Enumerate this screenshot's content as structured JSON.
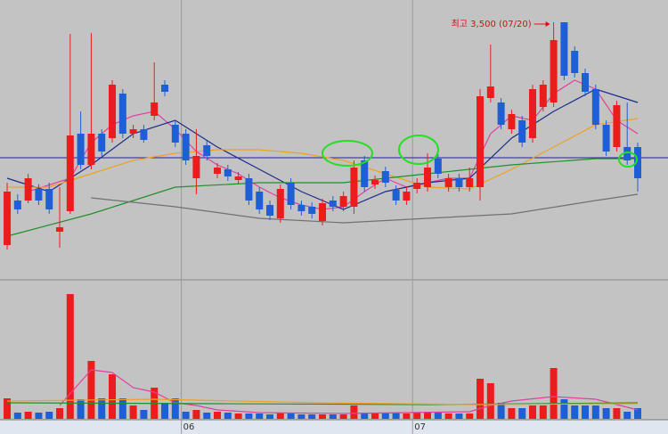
{
  "chart_data": {
    "type": "candlestick",
    "annotation": "최고 3,500 (07/20)",
    "categories": [
      null,
      null,
      null,
      null,
      null,
      null,
      null,
      null,
      null,
      null,
      null,
      null,
      null,
      null,
      null,
      null,
      null,
      "06",
      null,
      null,
      null,
      null,
      null,
      null,
      null,
      null,
      null,
      null,
      null,
      null,
      null,
      null,
      null,
      null,
      null,
      null,
      null,
      null,
      null,
      "07",
      null,
      null,
      null,
      null,
      null,
      null,
      null,
      null,
      null,
      null,
      null,
      null,
      null,
      null,
      null,
      null,
      null,
      null,
      null,
      null,
      null
    ],
    "open": [
      2000,
      2300,
      2300,
      2378,
      2378,
      2090,
      2228,
      2750,
      2540,
      2750,
      2720,
      3020,
      2750,
      2780,
      2870,
      3080,
      2810,
      2750,
      2450,
      2672,
      2480,
      2510,
      2438,
      2450,
      2360,
      2270,
      2180,
      2420,
      2270,
      2258,
      2162,
      2300,
      2258,
      2258,
      2570,
      2408,
      2498,
      2372,
      2300,
      2378,
      2390,
      2582,
      2390,
      2450,
      2390,
      2390,
      2990,
      2960,
      2780,
      2840,
      2720,
      2930,
      2960,
      3500,
      3308,
      3158,
      3050,
      2810,
      2660,
      2660,
      2660
    ],
    "high": [
      2420,
      2342,
      2480,
      2410,
      2420,
      2390,
      3422,
      2900,
      3428,
      2780,
      3110,
      3050,
      2810,
      2810,
      3230,
      3110,
      2840,
      2780,
      2780,
      2702,
      2552,
      2540,
      2492,
      2480,
      2390,
      2300,
      2408,
      2450,
      2300,
      2288,
      2312,
      2330,
      2360,
      2570,
      2600,
      2468,
      2528,
      2402,
      2390,
      2450,
      2618,
      2612,
      2480,
      2480,
      2522,
      3050,
      3350,
      2990,
      2912,
      2870,
      3080,
      3110,
      3500,
      3500,
      3338,
      3188,
      3080,
      2840,
      2972,
      2960,
      2690
    ],
    "low": [
      1970,
      2210,
      2282,
      2270,
      2210,
      1982,
      2210,
      2510,
      2510,
      2600,
      2690,
      2720,
      2720,
      2690,
      2840,
      3002,
      2660,
      2540,
      2342,
      2570,
      2450,
      2432,
      2408,
      2270,
      2210,
      2168,
      2150,
      2240,
      2198,
      2180,
      2132,
      2228,
      2228,
      2210,
      2360,
      2378,
      2390,
      2270,
      2270,
      2348,
      2360,
      2450,
      2360,
      2360,
      2360,
      2300,
      2960,
      2780,
      2750,
      2660,
      2690,
      2900,
      2930,
      3110,
      3128,
      3002,
      2780,
      2600,
      2630,
      2540,
      2360
    ],
    "close": [
      2360,
      2240,
      2450,
      2300,
      2240,
      2120,
      2738,
      2540,
      2750,
      2630,
      3080,
      2750,
      2780,
      2708,
      2960,
      3032,
      2690,
      2570,
      2600,
      2600,
      2522,
      2462,
      2462,
      2300,
      2240,
      2198,
      2378,
      2270,
      2228,
      2210,
      2282,
      2258,
      2330,
      2522,
      2390,
      2438,
      2420,
      2300,
      2360,
      2420,
      2522,
      2480,
      2450,
      2390,
      2450,
      3002,
      3068,
      2810,
      2882,
      2690,
      3050,
      3080,
      3380,
      3140,
      3158,
      3032,
      2810,
      2630,
      2942,
      2570,
      2450
    ],
    "up_color": "#ec1c1c",
    "down_color": "#1f5fd6",
    "xlim": [
      -0.68,
      62.88
    ],
    "ylim": [
      1772,
      3650
    ],
    "reference_line": {
      "value": 2588,
      "color": "#2020a0"
    },
    "ma_lines": [
      {
        "color": "#e040a0",
        "x": [
          2,
          6,
          8,
          10,
          12,
          14,
          16,
          18,
          20,
          22,
          24,
          26,
          28,
          30,
          32,
          34,
          36,
          38,
          40,
          42,
          44,
          46,
          48,
          50,
          52,
          54,
          56,
          58,
          60
        ],
        "values": [
          2360,
          2450,
          2690,
          2810,
          2870,
          2900,
          2780,
          2630,
          2540,
          2480,
          2390,
          2318,
          2270,
          2240,
          2258,
          2360,
          2450,
          2390,
          2420,
          2450,
          2450,
          2750,
          2870,
          2840,
          3020,
          3110,
          3050,
          2840,
          2750
        ]
      },
      {
        "color": "#1a2a8a",
        "x": [
          0,
          4,
          8,
          12,
          16,
          20,
          24,
          28,
          32,
          36,
          40,
          44,
          48,
          52,
          56,
          60
        ],
        "values": [
          2450,
          2360,
          2540,
          2750,
          2840,
          2660,
          2510,
          2360,
          2240,
          2360,
          2420,
          2450,
          2720,
          2900,
          3050,
          2960
        ]
      },
      {
        "color": "#f0a020",
        "x": [
          0,
          4,
          8,
          12,
          16,
          20,
          24,
          28,
          32,
          36,
          40,
          44,
          48,
          52,
          56,
          60
        ],
        "values": [
          2390,
          2390,
          2480,
          2570,
          2618,
          2642,
          2642,
          2618,
          2570,
          2480,
          2390,
          2378,
          2510,
          2660,
          2810,
          2852
        ]
      },
      {
        "color": "#20902a",
        "x": [
          0,
          8,
          16,
          24,
          32,
          40,
          48,
          56,
          60
        ],
        "values": [
          2060,
          2210,
          2390,
          2420,
          2420,
          2480,
          2540,
          2582,
          2582
        ]
      },
      {
        "color": "#707070",
        "x": [
          8,
          16,
          24,
          32,
          40,
          48,
          56,
          60
        ],
        "values": [
          2318,
          2258,
          2180,
          2150,
          2180,
          2210,
          2300,
          2342
        ]
      }
    ],
    "volume": {
      "values": [
        23,
        7,
        8,
        7,
        8,
        12,
        140,
        22,
        65,
        23,
        50,
        23,
        15,
        10,
        35,
        18,
        23,
        8,
        10,
        7,
        8,
        7,
        6,
        6,
        6,
        5,
        7,
        6,
        5,
        5,
        5,
        5,
        5,
        15,
        7,
        6,
        7,
        7,
        6,
        7,
        8,
        7,
        6,
        6,
        6,
        45,
        40,
        18,
        12,
        12,
        15,
        15,
        57,
        22,
        15,
        15,
        15,
        12,
        12,
        8,
        12
      ],
      "ylim": [
        0,
        150
      ],
      "ma_lines": [
        {
          "color": "#e040a0",
          "x": [
            5,
            8,
            10,
            12,
            14,
            16,
            18,
            20,
            24,
            32,
            44,
            46,
            48,
            52,
            56,
            60
          ],
          "values": [
            15,
            55,
            52,
            35,
            30,
            18,
            15,
            10,
            7,
            6,
            8,
            15,
            20,
            25,
            22,
            10
          ]
        },
        {
          "color": "#20902a",
          "x": [
            0,
            20,
            40,
            60
          ],
          "values": [
            18,
            17,
            16,
            18
          ]
        },
        {
          "color": "#f0a020",
          "x": [
            0,
            14,
            30,
            45,
            60
          ],
          "values": [
            20,
            22,
            18,
            16,
            17
          ]
        }
      ]
    }
  }
}
